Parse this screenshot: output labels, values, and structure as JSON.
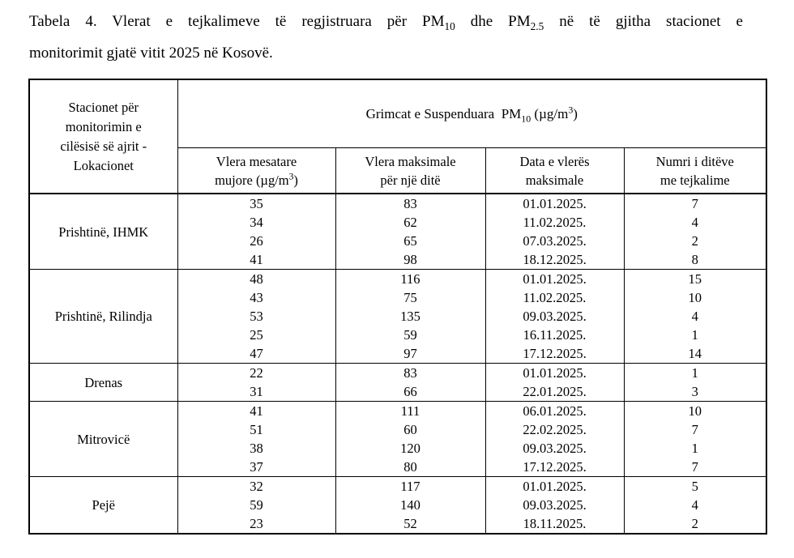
{
  "page": {
    "background_color": "#ffffff",
    "text_color": "#000000"
  },
  "caption": {
    "line1_parts": {
      "p0": "Tabela 4. Vlerat e tejkalimeve të regjistruara për PM",
      "p1": "10",
      "p2": " dhe PM",
      "p3": "2.5",
      "p4": " në të gjitha stacionet e"
    },
    "line2": "monitorimit gjatë vitit 2025 në Kosovë."
  },
  "table": {
    "station_header_lines": {
      "l0": "Stacionet për",
      "l1": "monitorimin e",
      "l2": "cilësisë së ajrit -",
      "l3": "Lokacionet"
    },
    "pm10_header": {
      "prefix": "Grimcat e Suspenduara  PM",
      "subscript": "10",
      "mid": " (µg/m",
      "superscript": "3",
      "suffix": ")"
    },
    "columns": [
      {
        "line1": "Vlera mesatare",
        "line2_prefix": "mujore (µg/m",
        "line2_sup": "3",
        "line2_suffix": ")"
      },
      {
        "line1": "Vlera maksimale",
        "line2": "për një ditë"
      },
      {
        "line1": "Data e vlerës",
        "line2": "maksimale"
      },
      {
        "line1": "Numri i ditëve",
        "line2": "me tejkalime"
      }
    ],
    "groups": [
      {
        "station": "Prishtinë, IHMK",
        "rows": [
          [
            "35",
            "83",
            "01.01.2025.",
            "7"
          ],
          [
            "34",
            "62",
            "11.02.2025.",
            "4"
          ],
          [
            "26",
            "65",
            "07.03.2025.",
            "2"
          ],
          [
            "41",
            "98",
            "18.12.2025.",
            "8"
          ]
        ]
      },
      {
        "station": "Prishtinë, Rilindja",
        "rows": [
          [
            "48",
            "116",
            "01.01.2025.",
            "15"
          ],
          [
            "43",
            "75",
            "11.02.2025.",
            "10"
          ],
          [
            "53",
            "135",
            "09.03.2025.",
            "4"
          ],
          [
            "25",
            "59",
            "16.11.2025.",
            "1"
          ],
          [
            "47",
            "97",
            "17.12.2025.",
            "14"
          ]
        ]
      },
      {
        "station": "Drenas",
        "rows": [
          [
            "22",
            "83",
            "01.01.2025.",
            "1"
          ],
          [
            "31",
            "66",
            "22.01.2025.",
            "3"
          ]
        ]
      },
      {
        "station": "Mitrovicë",
        "rows": [
          [
            "41",
            "111",
            "06.01.2025.",
            "10"
          ],
          [
            "51",
            "60",
            "22.02.2025.",
            "7"
          ],
          [
            "38",
            "120",
            "09.03.2025.",
            "1"
          ],
          [
            "37",
            "80",
            "17.12.2025.",
            "7"
          ]
        ]
      },
      {
        "station": "Pejë",
        "rows": [
          [
            "32",
            "117",
            "01.01.2025.",
            "5"
          ],
          [
            "59",
            "140",
            "09.03.2025.",
            "4"
          ],
          [
            "23",
            "52",
            "18.11.2025.",
            "2"
          ]
        ]
      }
    ],
    "cell_names": [
      "avg-monthly-value",
      "max-daily-value",
      "max-value-date",
      "exceedance-days"
    ]
  }
}
